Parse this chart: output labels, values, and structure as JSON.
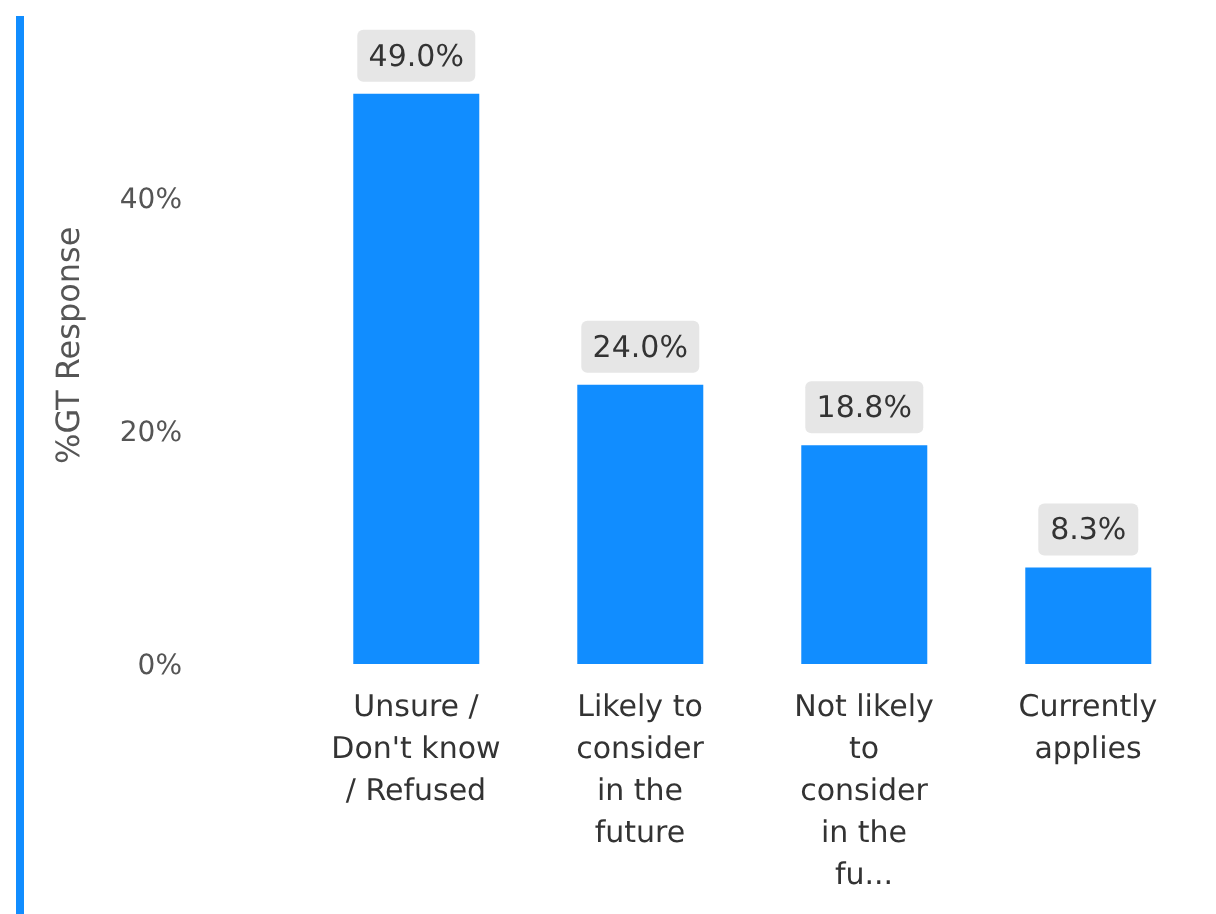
{
  "chart_data": {
    "type": "bar",
    "ylabel": "%GT Response",
    "categories": [
      "Unsure / Don't know / Refused",
      "Likely to consider in the future",
      "Not likely to consider in the fu...",
      "Currently applies"
    ],
    "values": [
      49.0,
      24.0,
      18.8,
      8.3
    ],
    "color": "#118dff",
    "value_labels": [
      "49.0%",
      "24.0%",
      "18.8%",
      "8.3%"
    ],
    "ylim": [
      0,
      55
    ],
    "yticks": [
      {
        "value": 0,
        "label": "0%"
      },
      {
        "value": 20,
        "label": "20%"
      },
      {
        "value": 40,
        "label": "40%"
      }
    ],
    "grid": false,
    "legend": false
  }
}
